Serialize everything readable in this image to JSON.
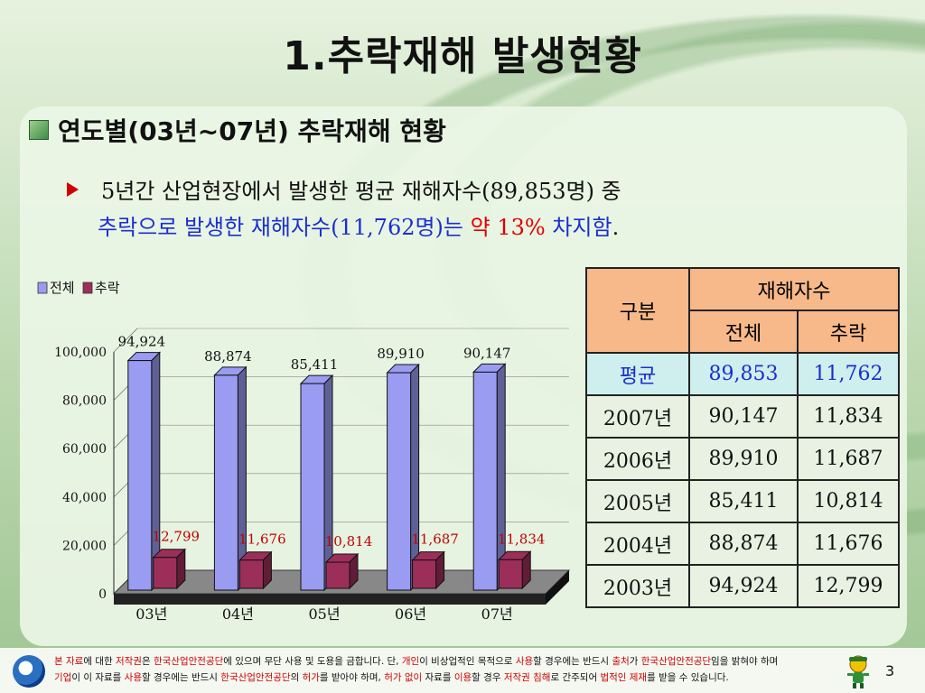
{
  "slide": {
    "title": "1.추락재해 발생현황",
    "subtitle": "연도별(03년~07년) 추락재해 현황",
    "line1": "5년간 산업현장에서 발생한 평균 재해자수(89,853명) 중",
    "line2_a": "추락으로 발생한 재해자수(11,762명)는 ",
    "line2_b": "약 13%",
    "line2_c": " 차지함",
    "line2_d": ".",
    "page_number": "3"
  },
  "chart_data": {
    "type": "bar",
    "legend": [
      "전체",
      "추락"
    ],
    "legend_position": "top-left",
    "categories": [
      "03년",
      "04년",
      "05년",
      "06년",
      "07년"
    ],
    "series": [
      {
        "name": "전체",
        "values": [
          94924,
          88874,
          85411,
          89910,
          90147
        ],
        "labels": [
          "94,924",
          "88,874",
          "85,411",
          "89,910",
          "90,147"
        ],
        "color": "#9a9cf2"
      },
      {
        "name": "추락",
        "values": [
          12799,
          11676,
          10814,
          11687,
          11834
        ],
        "labels": [
          "12,799",
          "11,676",
          "10,814",
          "11,687",
          "11,834"
        ],
        "color": "#9c2f59"
      }
    ],
    "yticks": [
      "100,000",
      "80,000",
      "60,000",
      "40,000",
      "20,000",
      "0"
    ],
    "ylim": [
      0,
      100000
    ],
    "grid": true
  },
  "table": {
    "h_group": "구분",
    "h_main": "재해자수",
    "h_total": "전체",
    "h_fall": "추락",
    "rows": [
      {
        "label": "평균",
        "total": "89,853",
        "fall": "11,762"
      },
      {
        "label": "2007년",
        "total": "90,147",
        "fall": "11,834"
      },
      {
        "label": "2006년",
        "total": "89,910",
        "fall": "11,687"
      },
      {
        "label": "2005년",
        "total": "85,411",
        "fall": "10,814"
      },
      {
        "label": "2004년",
        "total": "88,874",
        "fall": "11,676"
      },
      {
        "label": "2003년",
        "total": "94,924",
        "fall": "12,799"
      }
    ]
  },
  "footer": {
    "l1": [
      {
        "t": "본 자료",
        "r": true
      },
      {
        "t": "에 대한 ",
        "r": false
      },
      {
        "t": "저작권",
        "r": true
      },
      {
        "t": "은 ",
        "r": false
      },
      {
        "t": "한국산업안전공단",
        "r": true
      },
      {
        "t": "에 있으며 무단 사용 및 도용을 금합니다. 단, ",
        "r": false
      },
      {
        "t": "개인",
        "r": true
      },
      {
        "t": "이 비상업적인 목적으로 ",
        "r": false
      },
      {
        "t": "사용",
        "r": true
      },
      {
        "t": "할 경우에는 반드시 ",
        "r": false
      },
      {
        "t": "출처",
        "r": true
      },
      {
        "t": "가 ",
        "r": false
      },
      {
        "t": "한국산업안전공단",
        "r": true
      },
      {
        "t": "임을 밝혀야 하며",
        "r": false
      }
    ],
    "l2": [
      {
        "t": "기업",
        "r": true
      },
      {
        "t": "이 이 자료를 ",
        "r": false
      },
      {
        "t": "사용",
        "r": true
      },
      {
        "t": "할 경우에는 반드시 ",
        "r": false
      },
      {
        "t": "한국산업안전공단",
        "r": true
      },
      {
        "t": "의 ",
        "r": false
      },
      {
        "t": "허가",
        "r": true
      },
      {
        "t": "를 받아야 하며, ",
        "r": false
      },
      {
        "t": "허가 없이",
        "r": true
      },
      {
        "t": " 자료를 ",
        "r": false
      },
      {
        "t": "이용",
        "r": true
      },
      {
        "t": "할 경우 ",
        "r": false
      },
      {
        "t": "저작권 침해",
        "r": true
      },
      {
        "t": "로 간주되어 ",
        "r": false
      },
      {
        "t": "법적인 제재",
        "r": true
      },
      {
        "t": "를 받을 수 있습니다.",
        "r": false
      }
    ]
  }
}
